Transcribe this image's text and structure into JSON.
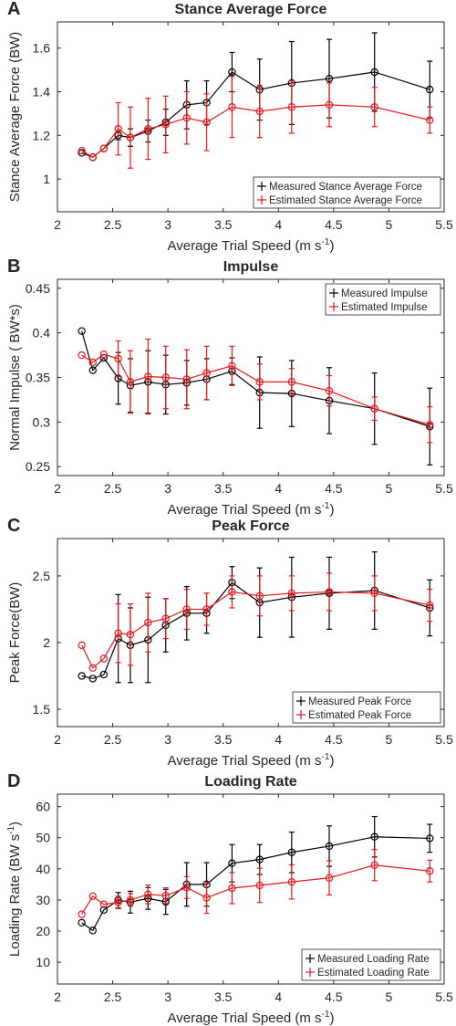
{
  "chart_data": [
    {
      "panel": "A",
      "type": "line",
      "title": "Stance Average Force",
      "xlabel": "Average Trial Speed (m s",
      "xlabel_sup": "-1",
      "xlabel_end": ")",
      "ylabel": "Stance Average Force (BW)",
      "xlim": [
        2,
        5.5
      ],
      "ylim": [
        0.85,
        1.72
      ],
      "xticks": [
        2,
        2.5,
        3,
        3.5,
        4,
        4.5,
        5,
        5.5
      ],
      "xtick_labels": [
        "2",
        "2.5",
        "3",
        "3.5",
        "4",
        "4.5",
        "5",
        "5.5"
      ],
      "yticks": [
        1,
        1.2,
        1.4,
        1.6
      ],
      "ytick_labels": [
        "1",
        "1.2",
        "1.4",
        "1.6"
      ],
      "legend_position": "bottom-right",
      "series": [
        {
          "name": "Measured Stance Average Force",
          "color": "#000000",
          "x": [
            2.22,
            2.32,
            2.42,
            2.55,
            2.66,
            2.82,
            2.98,
            3.17,
            3.35,
            3.58,
            3.83,
            4.12,
            4.46,
            4.87,
            5.37
          ],
          "y": [
            1.12,
            1.1,
            1.14,
            1.2,
            1.19,
            1.22,
            1.26,
            1.34,
            1.35,
            1.49,
            1.41,
            1.44,
            1.46,
            1.49,
            1.41
          ],
          "err": [
            0,
            0,
            0,
            0.02,
            0.04,
            0.05,
            0.06,
            0.11,
            0.1,
            0.09,
            0.14,
            0.19,
            0.18,
            0.18,
            0.13
          ]
        },
        {
          "name": "Estimated Stance Average Force",
          "color": "#e8191c",
          "x": [
            2.22,
            2.32,
            2.42,
            2.55,
            2.66,
            2.82,
            2.98,
            3.17,
            3.35,
            3.58,
            3.83,
            4.12,
            4.46,
            4.87,
            5.37
          ],
          "y": [
            1.13,
            1.1,
            1.14,
            1.23,
            1.19,
            1.23,
            1.25,
            1.28,
            1.26,
            1.33,
            1.31,
            1.33,
            1.34,
            1.33,
            1.27
          ],
          "err": [
            0,
            0,
            0,
            0.12,
            0.14,
            0.14,
            0.13,
            0.12,
            0.13,
            0.14,
            0.12,
            0.12,
            0.1,
            0.09,
            0.06
          ]
        }
      ]
    },
    {
      "panel": "B",
      "type": "line",
      "title": "Impulse",
      "xlabel": "Average Trial Speed (m s",
      "xlabel_sup": "-1",
      "xlabel_end": ")",
      "ylabel": "Normal Impulse ( BW*s)",
      "xlim": [
        2,
        5.5
      ],
      "ylim": [
        0.24,
        0.46
      ],
      "xticks": [
        2,
        2.5,
        3,
        3.5,
        4,
        4.5,
        5,
        5.5
      ],
      "xtick_labels": [
        "2",
        "2.5",
        "3",
        "3.5",
        "4",
        "4.5",
        "5",
        "5.5"
      ],
      "yticks": [
        0.25,
        0.3,
        0.35,
        0.4,
        0.45
      ],
      "ytick_labels": [
        "0.25",
        "0.3",
        "0.35",
        "0.4",
        "0.45"
      ],
      "legend_position": "top-right",
      "series": [
        {
          "name": "Measured Impulse",
          "color": "#000000",
          "x": [
            2.22,
            2.32,
            2.42,
            2.55,
            2.66,
            2.82,
            2.98,
            3.17,
            3.35,
            3.58,
            3.83,
            4.12,
            4.46,
            4.87,
            5.37
          ],
          "y": [
            0.402,
            0.358,
            0.372,
            0.349,
            0.341,
            0.345,
            0.342,
            0.344,
            0.348,
            0.357,
            0.333,
            0.332,
            0.324,
            0.315,
            0.295
          ],
          "err": [
            0,
            0,
            0,
            0.029,
            0.03,
            0.035,
            0.033,
            0.025,
            0.023,
            0.015,
            0.04,
            0.037,
            0.037,
            0.04,
            0.043
          ]
        },
        {
          "name": "Estimated Impulse",
          "color": "#e8191c",
          "x": [
            2.22,
            2.32,
            2.42,
            2.55,
            2.66,
            2.82,
            2.98,
            3.17,
            3.35,
            3.58,
            3.83,
            4.12,
            4.46,
            4.87,
            5.37
          ],
          "y": [
            0.375,
            0.367,
            0.376,
            0.371,
            0.345,
            0.351,
            0.35,
            0.348,
            0.355,
            0.363,
            0.345,
            0.345,
            0.335,
            0.315,
            0.297
          ],
          "err": [
            0,
            0,
            0,
            0.02,
            0.035,
            0.042,
            0.035,
            0.033,
            0.03,
            0.022,
            0.02,
            0.015,
            0.017,
            0.013,
            0.02
          ]
        }
      ]
    },
    {
      "panel": "C",
      "type": "line",
      "title": "Peak Force",
      "xlabel": "Average Trial Speed (m s",
      "xlabel_sup": "-1",
      "xlabel_end": ")",
      "ylabel": "Peak Force(BW)",
      "xlim": [
        2,
        5.5
      ],
      "ylim": [
        1.37,
        2.78
      ],
      "xticks": [
        2,
        2.5,
        3,
        3.5,
        4,
        4.5,
        5,
        5.5
      ],
      "xtick_labels": [
        "2",
        "2.5",
        "3",
        "3.5",
        "4",
        "4.5",
        "5",
        "5.5"
      ],
      "yticks": [
        1.5,
        2,
        2.5
      ],
      "ytick_labels": [
        "1.5",
        "2",
        "2.5"
      ],
      "legend_position": "bottom-right",
      "series": [
        {
          "name": "Measured Peak Force",
          "color": "#000000",
          "x": [
            2.22,
            2.32,
            2.42,
            2.55,
            2.66,
            2.82,
            2.98,
            3.17,
            3.35,
            3.58,
            3.83,
            4.12,
            4.46,
            4.87,
            5.37
          ],
          "y": [
            1.75,
            1.73,
            1.76,
            2.03,
            1.98,
            2.02,
            2.13,
            2.22,
            2.22,
            2.45,
            2.3,
            2.34,
            2.37,
            2.39,
            2.26
          ],
          "err": [
            0,
            0,
            0,
            0.33,
            0.28,
            0.32,
            0.2,
            0.2,
            0.15,
            0.12,
            0.26,
            0.3,
            0.27,
            0.29,
            0.21
          ]
        },
        {
          "name": "Estimated Peak Force",
          "color": "#e8191c",
          "x": [
            2.22,
            2.32,
            2.42,
            2.55,
            2.66,
            2.82,
            2.98,
            3.17,
            3.35,
            3.58,
            3.83,
            4.12,
            4.46,
            4.87,
            5.37
          ],
          "y": [
            1.98,
            1.81,
            1.88,
            2.07,
            2.06,
            2.15,
            2.18,
            2.25,
            2.25,
            2.38,
            2.35,
            2.37,
            2.38,
            2.37,
            2.28
          ],
          "err": [
            0,
            0,
            0,
            0.22,
            0.23,
            0.22,
            0.15,
            0.15,
            0.12,
            0.12,
            0.15,
            0.13,
            0.14,
            0.13,
            0.12
          ]
        }
      ]
    },
    {
      "panel": "D",
      "type": "line",
      "title": "Loading Rate",
      "xlabel": "Average Trial Speed (m s",
      "xlabel_sup": "-1",
      "xlabel_end": ")",
      "ylabel": "Loading Rate (BW s",
      "ylabel_sup": "-1",
      "ylabel_end": ")",
      "xlim": [
        2,
        5.5
      ],
      "ylim": [
        3,
        64
      ],
      "xticks": [
        2,
        2.5,
        3,
        3.5,
        4,
        4.5,
        5,
        5.5
      ],
      "xtick_labels": [
        "2",
        "2.5",
        "3",
        "3.5",
        "4",
        "4.5",
        "5",
        "5.5"
      ],
      "yticks": [
        10,
        20,
        30,
        40,
        50,
        60
      ],
      "ytick_labels": [
        "10",
        "20",
        "30",
        "40",
        "50",
        "60"
      ],
      "legend_position": "bottom-right",
      "series": [
        {
          "name": "Measured Loading Rate",
          "color": "#000000",
          "x": [
            2.22,
            2.32,
            2.42,
            2.55,
            2.66,
            2.82,
            2.98,
            3.17,
            3.35,
            3.58,
            3.83,
            4.12,
            4.46,
            4.87,
            5.37
          ],
          "y": [
            22.7,
            20.2,
            26.8,
            29.9,
            29.3,
            30.5,
            29.4,
            35.0,
            35.0,
            41.8,
            43.0,
            45.3,
            47.3,
            50.3,
            49.8
          ],
          "err": [
            0,
            0,
            0,
            2.5,
            3.5,
            3.5,
            4,
            7,
            7,
            6,
            4.8,
            6.5,
            6.5,
            6.5,
            4.5
          ]
        },
        {
          "name": "Estimated Loading Rate",
          "color": "#e8191c",
          "x": [
            2.22,
            2.32,
            2.42,
            2.55,
            2.66,
            2.82,
            2.98,
            3.17,
            3.35,
            3.58,
            3.83,
            4.12,
            4.46,
            4.87,
            5.37
          ],
          "y": [
            25.4,
            31.2,
            28.6,
            29.2,
            30.0,
            31.8,
            31.4,
            34.0,
            30.7,
            33.8,
            34.7,
            35.8,
            37.1,
            41.2,
            39.3
          ],
          "err": [
            0,
            0,
            0,
            2,
            2,
            3,
            2.5,
            3.5,
            5,
            5,
            5.5,
            5.5,
            5.5,
            5,
            3.5
          ]
        }
      ]
    }
  ]
}
